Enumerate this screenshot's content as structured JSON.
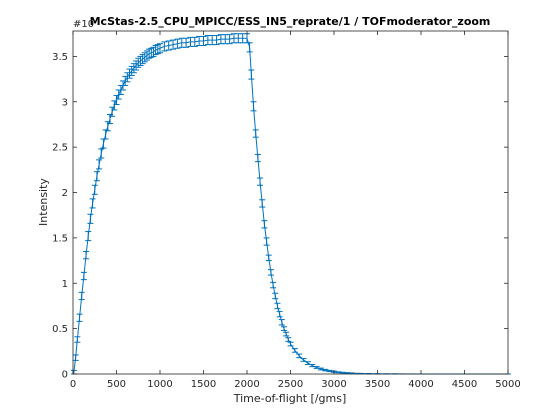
{
  "chart_data": {
    "type": "line",
    "title": "McStas-2.5_CPU_MPICC/ESS_IN5_reprate/1 / TOFmoderator_zoom",
    "xlabel": "Time-of-flight [/gms]",
    "ylabel": "Intensity",
    "y_exponent_label": "#10",
    "xlim": [
      0,
      5000
    ],
    "ylim": [
      0,
      3.78
    ],
    "xticks": [
      0,
      500,
      1000,
      1500,
      2000,
      2500,
      3000,
      3500,
      4000,
      4500,
      5000
    ],
    "xtick_labels": [
      "0",
      "500",
      "1000",
      "1500",
      "2000",
      "2500",
      "3000",
      "3500",
      "4000",
      "4500",
      "5000"
    ],
    "yticks": [
      0,
      0.5,
      1,
      1.5,
      2,
      2.5,
      3,
      3.5
    ],
    "ytick_labels": [
      "0",
      "0.5",
      "1",
      "1.5",
      "2",
      "2.5",
      "3",
      "3.5"
    ],
    "grid": false,
    "marker": "errorbar",
    "color": "#0072BD",
    "x": [
      10,
      30,
      50,
      75,
      100,
      125,
      150,
      175,
      200,
      225,
      250,
      275,
      300,
      325,
      350,
      375,
      400,
      425,
      450,
      475,
      500,
      525,
      550,
      575,
      600,
      625,
      650,
      675,
      700,
      725,
      750,
      775,
      800,
      825,
      850,
      875,
      900,
      925,
      950,
      975,
      1000,
      1050,
      1100,
      1150,
      1200,
      1250,
      1300,
      1350,
      1400,
      1450,
      1500,
      1550,
      1600,
      1650,
      1700,
      1750,
      1800,
      1850,
      1900,
      1950,
      2000,
      2030,
      2050,
      2075,
      2100,
      2125,
      2150,
      2175,
      2200,
      2225,
      2250,
      2275,
      2300,
      2325,
      2350,
      2375,
      2400,
      2425,
      2450,
      2475,
      2500,
      2550,
      2600,
      2650,
      2700,
      2750,
      2800,
      2850,
      2900,
      2950,
      3000,
      3050,
      3100,
      3150,
      3200,
      3300,
      3400,
      3500,
      3600,
      3700,
      3800,
      3900,
      4000,
      4200,
      4400,
      4600,
      4800,
      5000
    ],
    "y": [
      0.02,
      0.18,
      0.38,
      0.62,
      0.86,
      1.08,
      1.31,
      1.52,
      1.71,
      1.88,
      2.03,
      2.18,
      2.31,
      2.43,
      2.54,
      2.64,
      2.73,
      2.81,
      2.89,
      2.96,
      3.02,
      3.08,
      3.13,
      3.18,
      3.23,
      3.27,
      3.31,
      3.34,
      3.37,
      3.4,
      3.43,
      3.45,
      3.47,
      3.49,
      3.51,
      3.53,
      3.54,
      3.55,
      3.57,
      3.58,
      3.59,
      3.61,
      3.62,
      3.63,
      3.64,
      3.65,
      3.65,
      3.66,
      3.66,
      3.67,
      3.67,
      3.68,
      3.68,
      3.68,
      3.69,
      3.69,
      3.69,
      3.7,
      3.7,
      3.7,
      3.7,
      3.6,
      3.3,
      2.95,
      2.65,
      2.38,
      2.12,
      1.88,
      1.65,
      1.46,
      1.28,
      1.12,
      0.98,
      0.86,
      0.75,
      0.66,
      0.57,
      0.5,
      0.44,
      0.38,
      0.33,
      0.26,
      0.2,
      0.155,
      0.12,
      0.093,
      0.072,
      0.055,
      0.043,
      0.033,
      0.025,
      0.019,
      0.015,
      0.011,
      0.009,
      0.005,
      0.003,
      0.002,
      0.001,
      0.001,
      0.0005,
      0.0003,
      0.0002,
      0.0001,
      0.0001,
      0.0,
      0.0,
      0.0
    ],
    "yerr": [
      0.02,
      0.03,
      0.03,
      0.04,
      0.04,
      0.04,
      0.04,
      0.05,
      0.05,
      0.05,
      0.05,
      0.05,
      0.05,
      0.05,
      0.05,
      0.05,
      0.05,
      0.05,
      0.05,
      0.05,
      0.05,
      0.05,
      0.05,
      0.05,
      0.05,
      0.05,
      0.05,
      0.05,
      0.05,
      0.05,
      0.05,
      0.05,
      0.05,
      0.05,
      0.05,
      0.05,
      0.05,
      0.05,
      0.05,
      0.05,
      0.05,
      0.05,
      0.05,
      0.05,
      0.05,
      0.05,
      0.05,
      0.05,
      0.05,
      0.05,
      0.05,
      0.05,
      0.05,
      0.05,
      0.05,
      0.05,
      0.05,
      0.05,
      0.05,
      0.05,
      0.05,
      0.05,
      0.05,
      0.05,
      0.04,
      0.04,
      0.04,
      0.04,
      0.04,
      0.04,
      0.03,
      0.03,
      0.03,
      0.03,
      0.03,
      0.03,
      0.03,
      0.02,
      0.02,
      0.02,
      0.02,
      0.02,
      0.02,
      0.015,
      0.015,
      0.012,
      0.01,
      0.01,
      0.008,
      0.007,
      0.006,
      0.005,
      0.004,
      0.004,
      0.003,
      0.002,
      0.002,
      0.001,
      0.001,
      0.001,
      0.0005,
      0.0005,
      0.0003,
      0.0002,
      0.0002,
      0.0001,
      0.0001,
      0.0001
    ]
  }
}
